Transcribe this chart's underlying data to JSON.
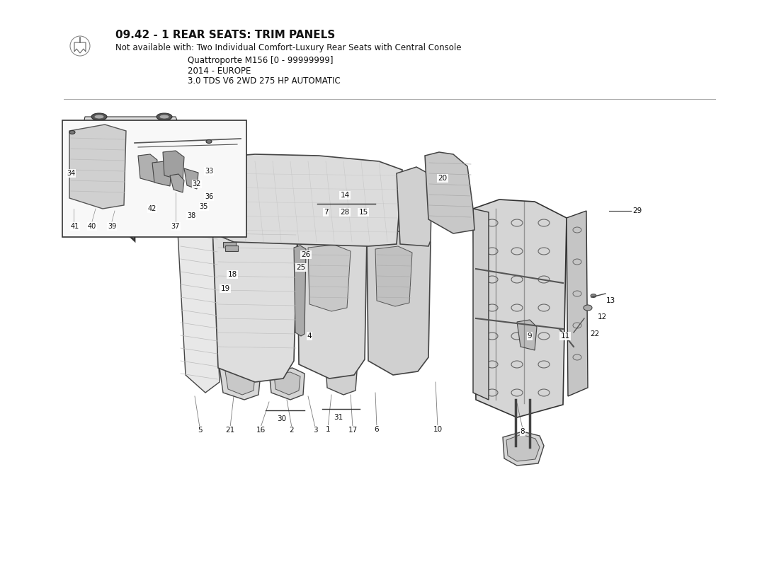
{
  "title_line1": "09.42 - 1 REAR SEATS: TRIM PANELS",
  "title_line2": "Not available with: Two Individual Comfort-Luxury Rear Seats with Central Console",
  "title_line3": "Quattroporte M156 [0 - 99999999]",
  "title_line4": "2014 - EUROPE",
  "title_line5": "3.0 TDS V6 2WD 275 HP AUTOMATIC",
  "bg_color": "#ffffff",
  "line_color": "#222222",
  "text_color": "#111111",
  "fig_width": 11.0,
  "fig_height": 8.0,
  "dpi": 100
}
